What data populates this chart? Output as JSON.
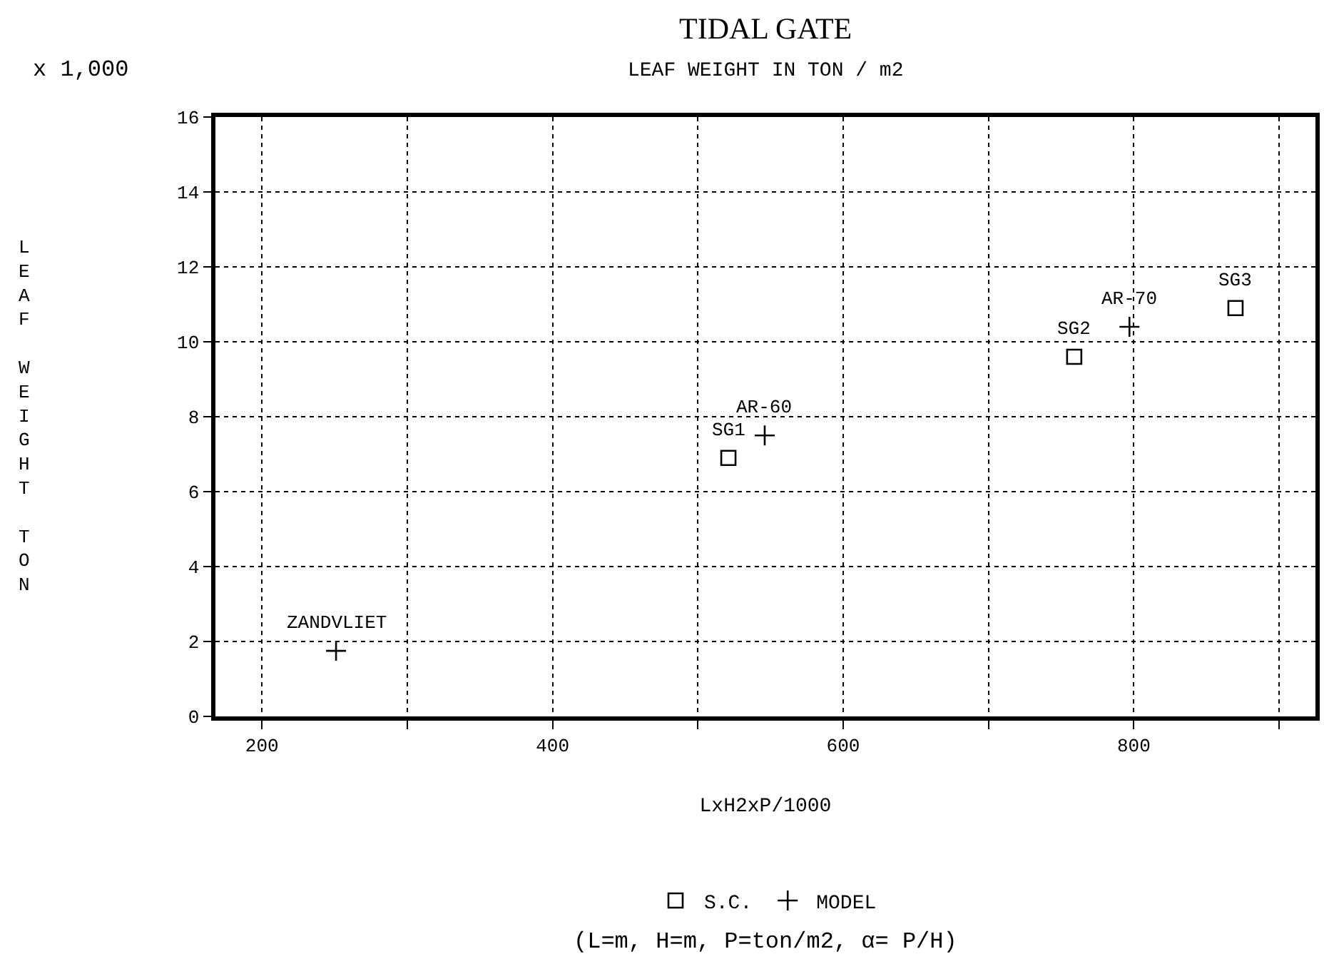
{
  "chart_data": {
    "type": "scatter",
    "title": "TIDAL GATE",
    "subtitle": "LEAF WEIGHT IN TON / m2",
    "xlabel": "LxH2xP/1000",
    "ylabel": "LEAF WEIGHT TON",
    "xlim": [
      168,
      925
    ],
    "xticks": [
      200,
      {
        "value": 300,
        "label": null
      },
      400,
      {
        "value": 500,
        "label": null
      },
      600,
      {
        "value": 700,
        "label": null
      },
      800,
      {
        "value": 900,
        "label": null
      }
    ],
    "ylim": [
      0,
      16
    ],
    "yticks": [
      0,
      2,
      4,
      6,
      8,
      10,
      12,
      14,
      16
    ],
    "grid": true,
    "legend": "bottom",
    "series": [
      {
        "name": "S.C.",
        "color": "#000000",
        "marker": "square",
        "x": [
          521,
          759,
          870
        ],
        "values": [
          6.9,
          9.6,
          10.9
        ]
      },
      {
        "name": "MODEL",
        "color": "#000000",
        "marker": "cross",
        "x": [
          251,
          546,
          797
        ],
        "values": [
          1.75,
          7.5,
          10.4
        ]
      }
    ],
    "annotations": [
      "x 1,000",
      {
        "text": "ZANDVLIET",
        "x": 251,
        "y": 1.75
      },
      {
        "text": "SG1",
        "x": 521,
        "y": 6.9
      },
      {
        "text": "AR-60",
        "x": 546,
        "y": 7.5
      },
      {
        "text": "SG2",
        "x": 759,
        "y": 9.6
      },
      {
        "text": "AR-70",
        "x": 797,
        "y": 10.4
      },
      {
        "text": "SG3",
        "x": 870,
        "y": 10.9
      },
      "(L=m, H=m, P=ton/m2, α= P/H)"
    ]
  }
}
